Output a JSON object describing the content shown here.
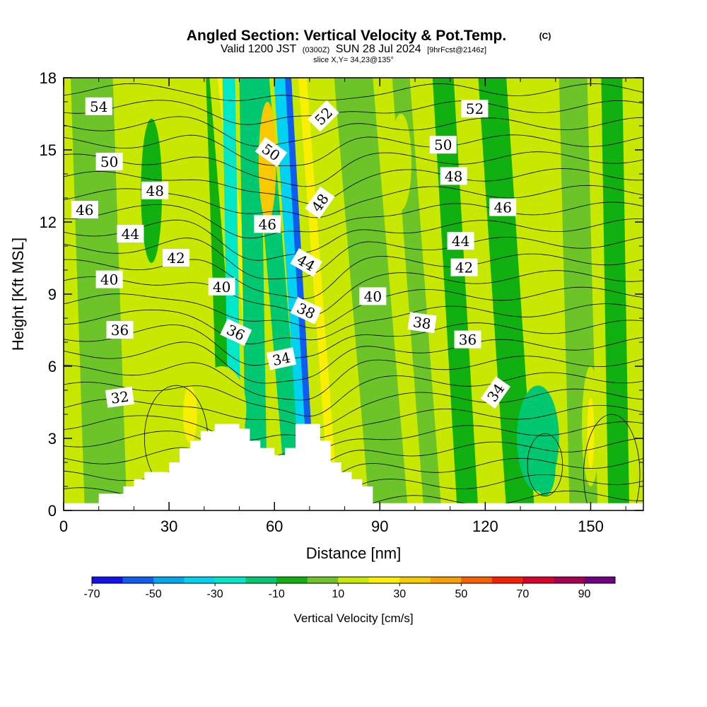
{
  "header": {
    "title": "Angled Section: Vertical Velocity & Pot.Temp.",
    "title_suffix": "(C)",
    "valid_prefix": "Valid 1200 JST",
    "valid_zulu": "(0300Z)",
    "valid_date": "SUN 28 Jul 2024",
    "forecast_tag": "[9hrFcst@2146z]",
    "slice_info": "slice X,Y= 34,23@135°"
  },
  "chart_data": {
    "type": "heatmap",
    "xlabel": "Distance [nm]",
    "ylabel": "Height [Kft MSL]",
    "xlim": [
      0,
      165
    ],
    "ylim": [
      0,
      18
    ],
    "x_ticks": [
      0,
      30,
      60,
      90,
      120,
      150
    ],
    "y_ticks": [
      0,
      3,
      6,
      9,
      12,
      15,
      18
    ],
    "colorbar": {
      "title": "Vertical Velocity [cm/s]",
      "tick_labels": [
        "-70",
        "-50",
        "-30",
        "-10",
        "10",
        "30",
        "50",
        "70",
        "90"
      ],
      "bins": [
        -70,
        -60,
        -50,
        -40,
        -30,
        -20,
        -10,
        0,
        10,
        20,
        30,
        40,
        50,
        60,
        70,
        80,
        90
      ],
      "colors": [
        "#1010f0",
        "#0f5cf0",
        "#00a8f0",
        "#00d2f0",
        "#00e8c8",
        "#00c870",
        "#10b010",
        "#6cc428",
        "#c8e800",
        "#f8f000",
        "#f8c800",
        "#f8a000",
        "#f86000",
        "#f82000",
        "#d8002c",
        "#a80050",
        "#700080"
      ]
    },
    "vertical_velocity_bands": [
      {
        "x_center_bottom": 12,
        "x_center_top": 8,
        "half_width": 6,
        "value": 0
      },
      {
        "x_center_bottom": 25,
        "x_center_top": 18,
        "half_width": 4,
        "value": 12
      },
      {
        "x_center_bottom": 38,
        "x_center_top": 33,
        "half_width": 3,
        "value": 12
      },
      {
        "x_center_bottom": 48,
        "x_center_top": 44,
        "half_width": 3.5,
        "value": -5
      },
      {
        "x_center_bottom": 54,
        "x_center_top": 44,
        "half_width": 2.5,
        "value": 15
      },
      {
        "x_center_bottom": 58,
        "x_center_top": 45,
        "half_width": 1.2,
        "value": 25
      },
      {
        "x_center_bottom": 49,
        "x_center_top": 47,
        "half_width": 1.8,
        "value": -28
      },
      {
        "x_center_bottom": 55,
        "x_center_top": 53,
        "half_width": 3,
        "value": -18
      },
      {
        "x_center_bottom": 66,
        "x_center_top": 56,
        "half_width": 2.5,
        "value": -20
      },
      {
        "x_center_bottom": 70,
        "x_center_top": 62,
        "half_width": 2.2,
        "value": -32
      },
      {
        "x_center_bottom": 71,
        "x_center_top": 64,
        "half_width": 1.0,
        "value": -52
      },
      {
        "x_center_bottom": 74,
        "x_center_top": 67,
        "half_width": 2.2,
        "value": 15
      },
      {
        "x_center_bottom": 77,
        "x_center_top": 68,
        "half_width": 1.2,
        "value": 28
      },
      {
        "x_center_bottom": 90,
        "x_center_top": 80,
        "half_width": 3,
        "value": 5
      },
      {
        "x_center_bottom": 95,
        "x_center_top": 85,
        "half_width": 3,
        "value": 8
      },
      {
        "x_center_bottom": 105,
        "x_center_top": 96,
        "half_width": 2.5,
        "value": 2
      },
      {
        "x_center_bottom": 115,
        "x_center_top": 108,
        "half_width": 3,
        "value": -3
      },
      {
        "x_center_bottom": 130,
        "x_center_top": 122,
        "half_width": 4,
        "value": -5
      },
      {
        "x_center_bottom": 148,
        "x_center_top": 145,
        "half_width": 4,
        "value": 8
      },
      {
        "x_center_bottom": 158,
        "x_center_top": 156,
        "half_width": 3,
        "value": -5
      }
    ],
    "vertical_velocity_blobs": [
      {
        "x": 45,
        "y": 4.2,
        "rx": 7,
        "ry": 1.8,
        "value": 15
      },
      {
        "x": 36,
        "y": 4.0,
        "rx": 2,
        "ry": 1.2,
        "value": 25
      },
      {
        "x": 135,
        "y": 3.0,
        "rx": 6,
        "ry": 2.2,
        "value": -12
      },
      {
        "x": 137,
        "y": 1.8,
        "rx": 3,
        "ry": 1.2,
        "value": -18
      },
      {
        "x": 150,
        "y": 3.5,
        "rx": 2.5,
        "ry": 2.5,
        "value": 15
      },
      {
        "x": 150,
        "y": 3.2,
        "rx": 1,
        "ry": 1.5,
        "value": 25
      },
      {
        "x": 58,
        "y": 14.5,
        "rx": 2.5,
        "ry": 2.5,
        "value": 30
      },
      {
        "x": 96,
        "y": 14.5,
        "rx": 3,
        "ry": 2,
        "value": 12
      },
      {
        "x": 25,
        "y": 13.3,
        "rx": 3,
        "ry": 3,
        "value": -3
      }
    ],
    "terrain": {
      "x": [
        0,
        10,
        10,
        17,
        17,
        20,
        20,
        23,
        23,
        30,
        30,
        33,
        33,
        36,
        36,
        39,
        39,
        43,
        43,
        50,
        50,
        53,
        53,
        56,
        56,
        60,
        60,
        63,
        63,
        66,
        66,
        73,
        73,
        76,
        76,
        79,
        79,
        82,
        82,
        85,
        85,
        88,
        88,
        165
      ],
      "y": [
        0.3,
        0.3,
        0.7,
        0.7,
        1.0,
        1.0,
        1.3,
        1.3,
        1.6,
        1.6,
        2.0,
        2.0,
        2.6,
        2.6,
        2.9,
        2.9,
        3.3,
        3.3,
        3.6,
        3.6,
        3.4,
        3.4,
        2.9,
        2.9,
        2.6,
        2.6,
        2.3,
        2.3,
        2.6,
        2.6,
        3.6,
        3.6,
        2.9,
        2.9,
        2.0,
        2.0,
        1.6,
        1.6,
        1.3,
        1.3,
        1.0,
        1.0,
        0.3,
        0.3
      ]
    },
    "theta_contours": {
      "levels": [
        30,
        31,
        32,
        33,
        34,
        35,
        36,
        37,
        38,
        39,
        40,
        41,
        42,
        43,
        44,
        45,
        46,
        47,
        48,
        49,
        50,
        51,
        52,
        53,
        54
      ],
      "labels": [
        {
          "text": "54",
          "x": 10,
          "y": 16.8,
          "angle": 0
        },
        {
          "text": "50",
          "x": 13,
          "y": 14.5,
          "angle": 0
        },
        {
          "text": "48",
          "x": 26,
          "y": 13.3,
          "angle": 0
        },
        {
          "text": "46",
          "x": 6,
          "y": 12.5,
          "angle": 0
        },
        {
          "text": "44",
          "x": 19,
          "y": 11.5,
          "angle": 0
        },
        {
          "text": "42",
          "x": 32,
          "y": 10.5,
          "angle": 0
        },
        {
          "text": "40",
          "x": 13,
          "y": 9.6,
          "angle": 0
        },
        {
          "text": "36",
          "x": 16,
          "y": 7.5,
          "angle": 0
        },
        {
          "text": "32",
          "x": 16,
          "y": 4.7,
          "angle": -8
        },
        {
          "text": "40",
          "x": 45,
          "y": 9.3,
          "angle": 0
        },
        {
          "text": "36",
          "x": 49,
          "y": 7.4,
          "angle": 25
        },
        {
          "text": "34",
          "x": 62,
          "y": 6.3,
          "angle": -12
        },
        {
          "text": "50",
          "x": 59,
          "y": 14.9,
          "angle": 35
        },
        {
          "text": "46",
          "x": 58,
          "y": 11.9,
          "angle": 0
        },
        {
          "text": "52",
          "x": 74,
          "y": 16.4,
          "angle": -45
        },
        {
          "text": "48",
          "x": 73,
          "y": 12.8,
          "angle": -55
        },
        {
          "text": "44",
          "x": 69,
          "y": 10.3,
          "angle": 30
        },
        {
          "text": "38",
          "x": 69,
          "y": 8.3,
          "angle": 25
        },
        {
          "text": "40",
          "x": 88,
          "y": 8.9,
          "angle": 0
        },
        {
          "text": "38",
          "x": 102,
          "y": 7.8,
          "angle": 8
        },
        {
          "text": "36",
          "x": 115,
          "y": 7.1,
          "angle": 0
        },
        {
          "text": "34",
          "x": 123,
          "y": 4.9,
          "angle": -55
        },
        {
          "text": "52",
          "x": 117,
          "y": 16.7,
          "angle": 0
        },
        {
          "text": "50",
          "x": 108,
          "y": 15.2,
          "angle": 0
        },
        {
          "text": "48",
          "x": 111,
          "y": 13.9,
          "angle": 0
        },
        {
          "text": "46",
          "x": 125,
          "y": 12.6,
          "angle": 0
        },
        {
          "text": "44",
          "x": 113,
          "y": 11.2,
          "angle": 0
        },
        {
          "text": "42",
          "x": 114,
          "y": 10.1,
          "angle": 0
        }
      ]
    }
  }
}
